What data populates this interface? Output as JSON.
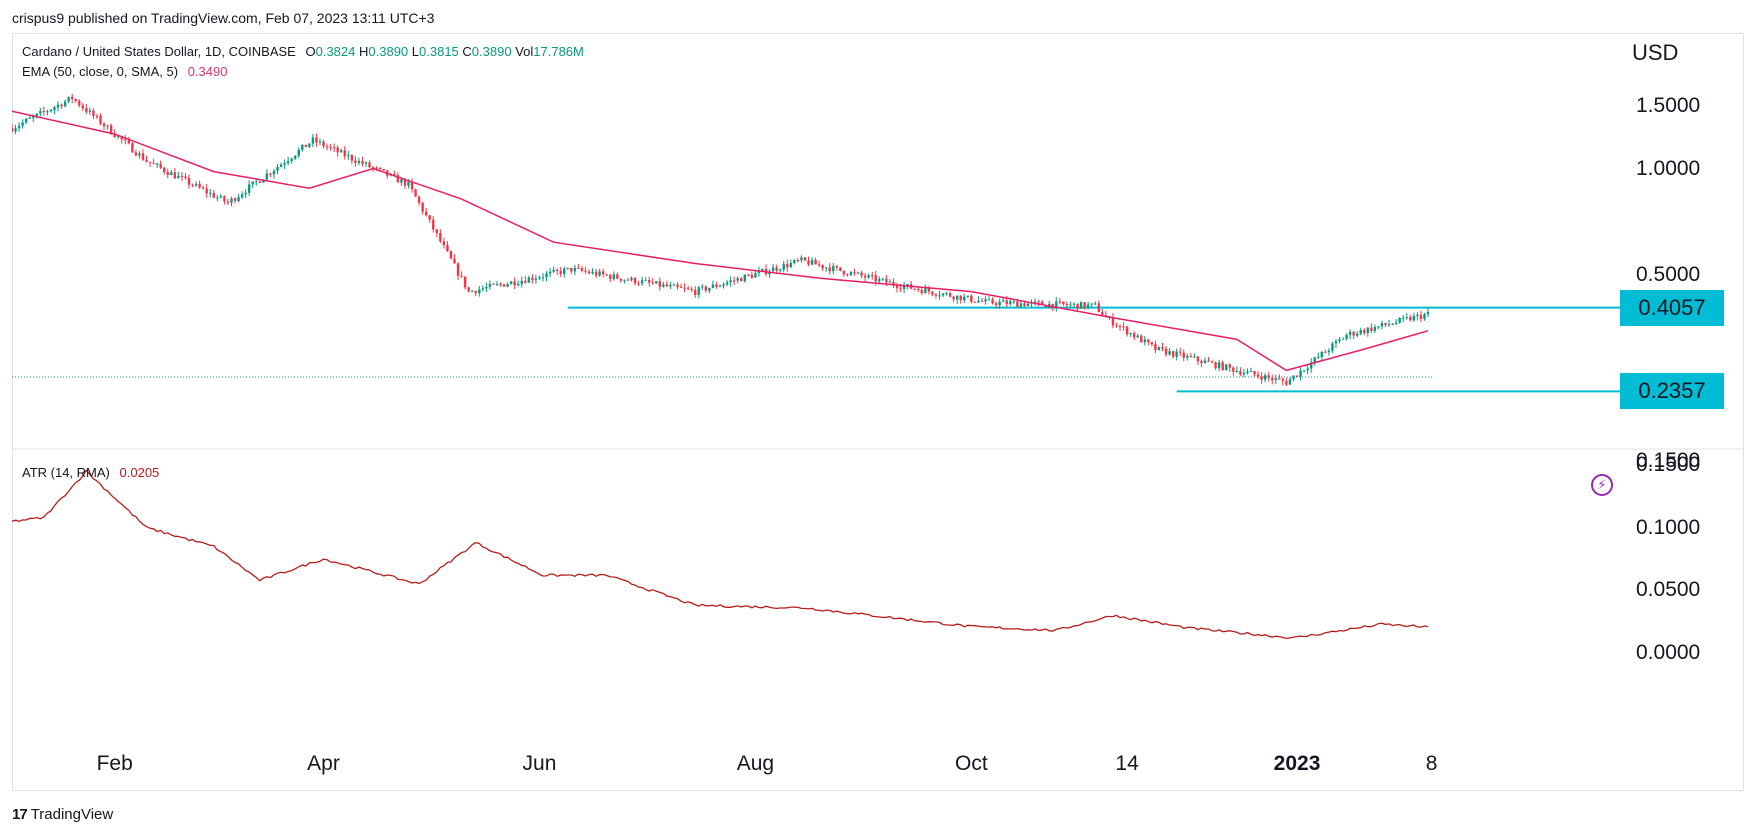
{
  "publisher_line": "crispus9 published on TradingView.com, Feb 07, 2023 13:11 UTC+3",
  "symbol": {
    "description": "Cardano / United States Dollar, 1D, COINBASE",
    "open_label": "O",
    "open": "0.3824",
    "high_label": "H",
    "high": "0.3890",
    "low_label": "L",
    "low": "0.3815",
    "close_label": "C",
    "close": "0.3890",
    "vol_label": "Vol",
    "vol": "17.786M"
  },
  "ema": {
    "label": "EMA (50, close, 0, SMA, 5)",
    "value": "0.3490"
  },
  "atr": {
    "label": "ATR (14, RMA)",
    "value": "0.0205"
  },
  "currency": "USD",
  "price_tags": [
    "0.4057",
    "0.2357"
  ],
  "brand": {
    "logo": "17",
    "name": "TradingView"
  },
  "colors": {
    "up": "#089981",
    "down": "#f23645",
    "ema": "#e91e63",
    "atr": "#b71c1c",
    "level": "#00bcd4",
    "grid": "#e0e3eb"
  },
  "chart_data": [
    {
      "type": "candlestick",
      "title": "Cardano / United States Dollar, 1D, COINBASE",
      "price_scale": "log",
      "y_ticks": [
        1.5,
        1.0,
        0.5,
        0.15
      ],
      "y_tick_labels": [
        "1.5000",
        "1.0000",
        "0.5000",
        "0.1500"
      ],
      "x_tick_labels": [
        "Feb",
        "Apr",
        "Jun",
        "Aug",
        "Oct",
        "14",
        "2023",
        "8"
      ],
      "x_tick_dates": [
        "2022-02-01",
        "2022-04-01",
        "2022-06-01",
        "2022-08-01",
        "2022-10-01",
        "2022-11-14",
        "2023-01-01",
        "2023-02-08"
      ],
      "x_range": [
        "2022-01-03",
        "2023-02-07"
      ],
      "candles_summary": {
        "x": [
          "2022-01-03",
          "2022-01-20",
          "2022-02-10",
          "2022-03-05",
          "2022-03-29",
          "2022-04-25",
          "2022-05-12",
          "2022-06-10",
          "2022-07-15",
          "2022-08-14",
          "2022-09-10",
          "2022-10-05",
          "2022-11-05",
          "2022-11-08",
          "2022-11-22",
          "2022-12-15",
          "2022-12-29",
          "2023-01-15",
          "2023-02-07"
        ],
        "close": [
          1.3,
          1.58,
          1.05,
          0.8,
          1.2,
          0.9,
          0.45,
          0.52,
          0.45,
          0.55,
          0.47,
          0.42,
          0.41,
          0.38,
          0.31,
          0.27,
          0.25,
          0.34,
          0.389
        ]
      },
      "ema": {
        "name": "EMA (50, close, 0, SMA, 5)",
        "x": [
          "2022-01-03",
          "2022-02-01",
          "2022-03-01",
          "2022-03-28",
          "2022-04-15",
          "2022-05-10",
          "2022-06-05",
          "2022-07-15",
          "2022-08-20",
          "2022-10-01",
          "2022-11-10",
          "2022-12-15",
          "2022-12-29",
          "2023-01-20",
          "2023-02-07"
        ],
        "values": [
          1.45,
          1.25,
          0.98,
          0.88,
          1.0,
          0.82,
          0.62,
          0.54,
          0.49,
          0.45,
          0.38,
          0.33,
          0.27,
          0.31,
          0.349
        ]
      },
      "horizontal_levels": [
        {
          "value": 0.4057,
          "from": "2022-06-09",
          "label": "0.4057"
        },
        {
          "value": 0.2357,
          "from": "2022-11-28",
          "label": "0.2357"
        }
      ]
    },
    {
      "type": "line",
      "title": "ATR (14, RMA)",
      "y_ticks": [
        0.15,
        0.1,
        0.05,
        0.0
      ],
      "y_tick_labels": [
        "0.1500",
        "0.1000",
        "0.0500",
        "0.0000"
      ],
      "x": [
        "2022-01-03",
        "2022-01-12",
        "2022-01-24",
        "2022-02-10",
        "2022-03-01",
        "2022-03-14",
        "2022-04-01",
        "2022-04-28",
        "2022-05-14",
        "2022-06-02",
        "2022-06-20",
        "2022-07-15",
        "2022-08-15",
        "2022-10-01",
        "2022-10-25",
        "2022-11-10",
        "2022-12-01",
        "2022-12-31",
        "2023-01-25",
        "2023-02-07"
      ],
      "values": [
        0.105,
        0.108,
        0.145,
        0.1,
        0.085,
        0.058,
        0.075,
        0.055,
        0.088,
        0.062,
        0.062,
        0.038,
        0.036,
        0.021,
        0.018,
        0.03,
        0.02,
        0.012,
        0.023,
        0.0205
      ]
    }
  ]
}
